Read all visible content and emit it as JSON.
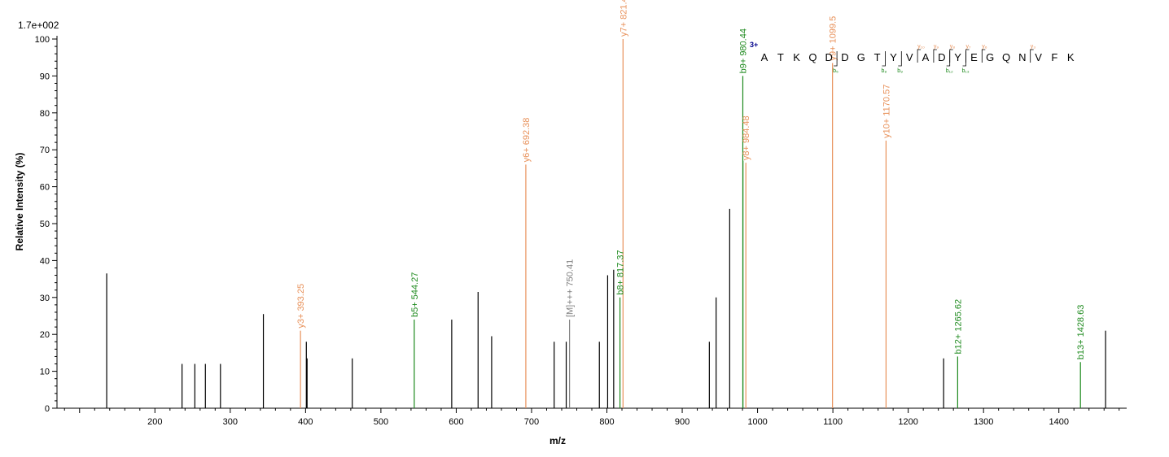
{
  "colors": {
    "y_ion": "#E8915A",
    "b_ion": "#1E8A1E",
    "other": "#7F7F7F",
    "unassigned": "#000000",
    "charge": "#00008B"
  },
  "chart_data": {
    "type": "bar",
    "title": "",
    "scale_label": "1.7e+002",
    "xlabel": "m/z",
    "ylabel": "Relative  Intensity (%)",
    "xlim": [
      70,
      1490
    ],
    "ylim": [
      0,
      100
    ],
    "x_ticks": [
      200,
      300,
      400,
      500,
      600,
      700,
      800,
      900,
      1000,
      1100,
      1200,
      1300,
      1400
    ],
    "y_ticks": [
      0,
      10,
      20,
      30,
      40,
      50,
      60,
      70,
      80,
      90,
      100
    ],
    "peaks": [
      {
        "mz": 136,
        "intensity": 36.5,
        "type": "unassigned",
        "label": ""
      },
      {
        "mz": 236,
        "intensity": 12,
        "type": "unassigned",
        "label": ""
      },
      {
        "mz": 253,
        "intensity": 12,
        "type": "unassigned",
        "label": ""
      },
      {
        "mz": 267,
        "intensity": 12,
        "type": "unassigned",
        "label": ""
      },
      {
        "mz": 287,
        "intensity": 12,
        "type": "unassigned",
        "label": ""
      },
      {
        "mz": 344,
        "intensity": 25.5,
        "type": "unassigned",
        "label": ""
      },
      {
        "mz": 393.25,
        "intensity": 21,
        "type": "y",
        "label": "y3+ 393.25"
      },
      {
        "mz": 401,
        "intensity": 18,
        "type": "unassigned",
        "label": ""
      },
      {
        "mz": 402,
        "intensity": 13.5,
        "type": "unassigned",
        "label": ""
      },
      {
        "mz": 462,
        "intensity": 13.5,
        "type": "unassigned",
        "label": ""
      },
      {
        "mz": 544.27,
        "intensity": 24,
        "type": "b",
        "label": "b5+ 544.27"
      },
      {
        "mz": 594,
        "intensity": 24,
        "type": "unassigned",
        "label": ""
      },
      {
        "mz": 629,
        "intensity": 31.5,
        "type": "unassigned",
        "label": ""
      },
      {
        "mz": 647,
        "intensity": 19.5,
        "type": "unassigned",
        "label": ""
      },
      {
        "mz": 692.38,
        "intensity": 66,
        "type": "y",
        "label": "y6+ 692.38"
      },
      {
        "mz": 730,
        "intensity": 18,
        "type": "unassigned",
        "label": ""
      },
      {
        "mz": 746,
        "intensity": 18,
        "type": "unassigned",
        "label": ""
      },
      {
        "mz": 750.41,
        "intensity": 24,
        "type": "other",
        "label": "[M]+++ 750.41"
      },
      {
        "mz": 790,
        "intensity": 18,
        "type": "unassigned",
        "label": ""
      },
      {
        "mz": 801,
        "intensity": 36,
        "type": "unassigned",
        "label": ""
      },
      {
        "mz": 809,
        "intensity": 37.5,
        "type": "unassigned",
        "label": ""
      },
      {
        "mz": 817.37,
        "intensity": 30,
        "type": "b",
        "label": "b8+ 817.37"
      },
      {
        "mz": 821.41,
        "intensity": 100,
        "type": "y",
        "label": "y7+ 821.41"
      },
      {
        "mz": 936,
        "intensity": 18,
        "type": "unassigned",
        "label": ""
      },
      {
        "mz": 945,
        "intensity": 30,
        "type": "unassigned",
        "label": ""
      },
      {
        "mz": 963,
        "intensity": 54,
        "type": "unassigned",
        "label": ""
      },
      {
        "mz": 980.44,
        "intensity": 90,
        "type": "b",
        "label": "b9+ 980.44"
      },
      {
        "mz": 980.6,
        "intensity": 67,
        "type": "b",
        "label": ""
      },
      {
        "mz": 984.48,
        "intensity": 66.5,
        "type": "y",
        "label": "y8+ 984.48"
      },
      {
        "mz": 1099.5,
        "intensity": 93.5,
        "type": "y",
        "label": "y9+ 1099.5"
      },
      {
        "mz": 1170.57,
        "intensity": 72.5,
        "type": "y",
        "label": "y10+ 1170.57"
      },
      {
        "mz": 1247,
        "intensity": 13.5,
        "type": "unassigned",
        "label": ""
      },
      {
        "mz": 1265.62,
        "intensity": 14,
        "type": "b",
        "label": "b12+ 1265.62"
      },
      {
        "mz": 1428.63,
        "intensity": 12.5,
        "type": "b",
        "label": "b13+ 1428.63"
      },
      {
        "mz": 1462,
        "intensity": 21,
        "type": "unassigned",
        "label": ""
      }
    ],
    "sequence": {
      "charge": "3+",
      "residues": [
        "A",
        "T",
        "K",
        "Q",
        "D",
        "D",
        "G",
        "T",
        "Y",
        "V",
        "A",
        "D",
        "Y",
        "E",
        "G",
        "Q",
        "N",
        "V",
        "F",
        "K"
      ],
      "b_marks": [
        {
          "after": 5,
          "label": "b₅"
        },
        {
          "after": 8,
          "label": "b₈"
        },
        {
          "after": 9,
          "label": "b₉"
        },
        {
          "after": 12,
          "label": "b₁₂"
        },
        {
          "after": 13,
          "label": "b₁₃"
        }
      ],
      "y_marks": [
        {
          "after": 10,
          "label": "y₁₀"
        },
        {
          "after": 11,
          "label": "y₉"
        },
        {
          "after": 12,
          "label": "y₈"
        },
        {
          "after": 13,
          "label": "y₇"
        },
        {
          "after": 14,
          "label": "y₆"
        },
        {
          "after": 17,
          "label": "y₃"
        }
      ]
    }
  }
}
